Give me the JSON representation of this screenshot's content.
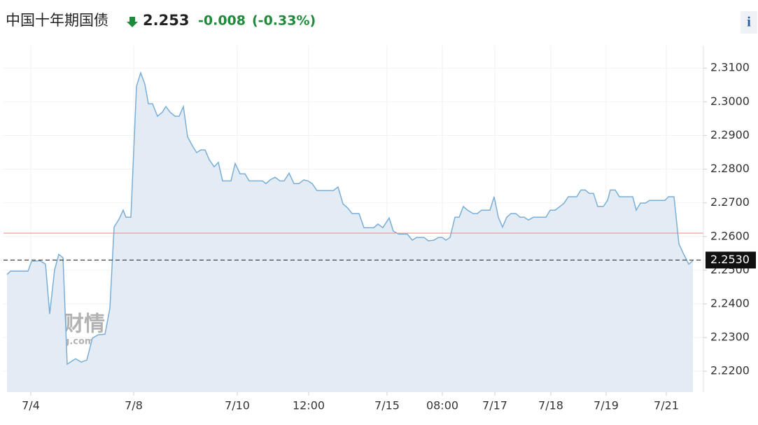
{
  "chart_data": {
    "type": "area",
    "title": "中国十年期国债",
    "price": 2.253,
    "change": -0.008,
    "change_pct": "(-0.33%)",
    "info_button": "i",
    "watermark": {
      "cn": "英为财情",
      "en": "Investing.com"
    },
    "color": "#7aaed6",
    "fill": "#e3ecf5",
    "last": {
      "value": 2.253,
      "label": "2.2530"
    },
    "previous_close": 2.261,
    "xlim": [
      5,
      1005
    ],
    "ylim": [
      2.2138,
      2.3167
    ],
    "grid": true,
    "xticks": [
      {
        "value": 44,
        "label": "7/4"
      },
      {
        "value": 191,
        "label": "7/8"
      },
      {
        "value": 339,
        "label": "7/10"
      },
      {
        "value": 441,
        "label": "12:00"
      },
      {
        "value": 553,
        "label": "7/15"
      },
      {
        "value": 632,
        "label": "08:00"
      },
      {
        "value": 707,
        "label": "7/17"
      },
      {
        "value": 787,
        "label": "7/18"
      },
      {
        "value": 866,
        "label": "7/19"
      },
      {
        "value": 952,
        "label": "7/21"
      }
    ],
    "yticks": [
      {
        "value": 2.22,
        "label": "2.2200"
      },
      {
        "value": 2.23,
        "label": "2.2300"
      },
      {
        "value": 2.24,
        "label": "2.2400"
      },
      {
        "value": 2.25,
        "label": "2.2500"
      },
      {
        "value": 2.26,
        "label": "2.2600"
      },
      {
        "value": 2.27,
        "label": "2.2700"
      },
      {
        "value": 2.28,
        "label": "2.2800"
      },
      {
        "value": 2.29,
        "label": "2.2900"
      },
      {
        "value": 2.3,
        "label": "2.3000"
      },
      {
        "value": 2.31,
        "label": "2.3100"
      }
    ],
    "x": [
      10,
      15,
      40,
      45,
      57,
      65,
      71,
      78,
      84,
      90,
      96,
      108,
      116,
      124,
      132,
      140,
      150,
      157,
      163,
      170,
      176,
      180,
      187,
      195,
      201,
      207,
      212,
      218,
      225,
      232,
      237,
      243,
      250,
      256,
      262,
      268,
      275,
      281,
      287,
      293,
      299,
      306,
      312,
      318,
      330,
      336,
      343,
      350,
      356,
      375,
      380,
      386,
      393,
      400,
      406,
      413,
      420,
      427,
      434,
      440,
      446,
      453,
      476,
      483,
      490,
      497,
      503,
      513,
      520,
      534,
      540,
      547,
      556,
      562,
      570,
      582,
      589,
      595,
      606,
      612,
      620,
      626,
      632,
      637,
      643,
      650,
      656,
      662,
      668,
      676,
      682,
      688,
      700,
      706,
      712,
      718,
      724,
      730,
      737,
      743,
      749,
      755,
      762,
      780,
      786,
      793,
      800,
      806,
      812,
      824,
      830,
      836,
      842,
      848,
      854,
      862,
      868,
      872,
      879,
      885,
      904,
      909,
      915,
      922,
      928,
      950,
      955,
      963,
      970,
      977,
      984,
      990
    ],
    "values": [
      2.2487,
      2.2497,
      2.2497,
      2.2526,
      2.2528,
      2.2518,
      2.237,
      2.2501,
      2.2547,
      2.2537,
      2.2221,
      2.2237,
      2.2227,
      2.2233,
      2.2298,
      2.2308,
      2.231,
      2.2387,
      2.2628,
      2.2651,
      2.2678,
      2.2657,
      2.2657,
      2.3046,
      2.3086,
      2.3052,
      2.2994,
      2.2994,
      2.2957,
      2.2969,
      2.2986,
      2.2969,
      2.2957,
      2.2957,
      2.2986,
      2.2896,
      2.2869,
      2.2849,
      2.2857,
      2.2857,
      2.2828,
      2.2807,
      2.282,
      2.2765,
      2.2765,
      2.2817,
      2.2786,
      2.2786,
      2.2765,
      2.2765,
      2.2757,
      2.2768,
      2.2776,
      2.2765,
      2.2765,
      2.2788,
      2.2757,
      2.2757,
      2.2768,
      2.2765,
      2.2757,
      2.2736,
      2.2736,
      2.2747,
      2.2697,
      2.2684,
      2.2668,
      2.2668,
      2.2626,
      2.2626,
      2.2637,
      2.2626,
      2.2655,
      2.2616,
      2.2607,
      2.2607,
      2.2589,
      2.2597,
      2.2597,
      2.2587,
      2.2589,
      2.2597,
      2.2597,
      2.2589,
      2.2597,
      2.2657,
      2.2657,
      2.2689,
      2.2678,
      2.2668,
      2.2668,
      2.2678,
      2.2678,
      2.2718,
      2.2657,
      2.2628,
      2.2657,
      2.2668,
      2.2668,
      2.2657,
      2.2657,
      2.2649,
      2.2657,
      2.2657,
      2.2678,
      2.2678,
      2.2689,
      2.2699,
      2.2718,
      2.2718,
      2.2738,
      2.2738,
      2.2728,
      2.2728,
      2.2689,
      2.2689,
      2.2707,
      2.2738,
      2.2738,
      2.2718,
      2.2718,
      2.2678,
      2.2699,
      2.2699,
      2.2707,
      2.2707,
      2.2718,
      2.2718,
      2.2578,
      2.2547,
      2.2518,
      2.2528
    ]
  }
}
